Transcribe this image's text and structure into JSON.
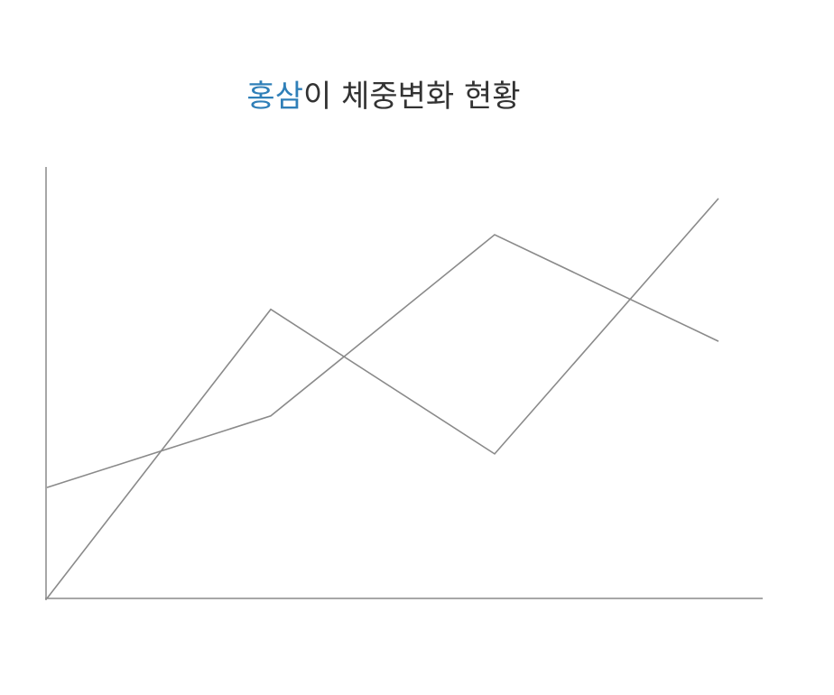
{
  "chart_data": {
    "type": "line",
    "title": {
      "highlight": "홍삼",
      "rest": "이 체중변화 현황"
    },
    "title_colors": {
      "highlight": "#2f7fb8",
      "rest": "#333333"
    },
    "categories": [
      null,
      null,
      null,
      null
    ],
    "series": [
      {
        "color": "#8a8a8a",
        "values": [
          0,
          67,
          33.5,
          92.7
        ]
      },
      {
        "color": "#8a8a8a",
        "values": [
          25.7,
          42.3,
          84.3,
          59.6
        ]
      }
    ],
    "ylim": [
      0,
      100
    ],
    "axis_color": "#8a8a8a"
  }
}
